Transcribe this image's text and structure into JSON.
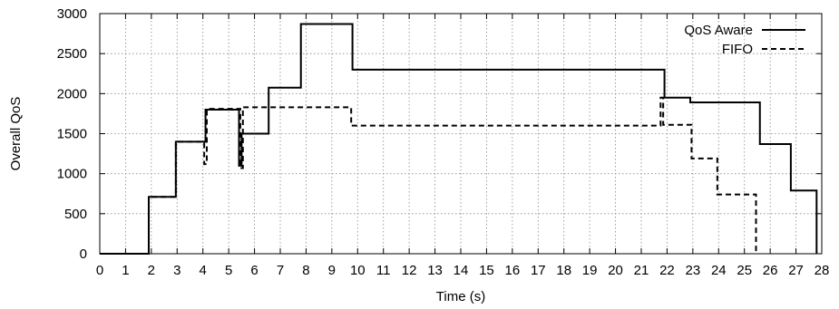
{
  "chart_data": {
    "type": "line",
    "xlabel": "Time (s)",
    "ylabel": "Overall QoS",
    "xlim": [
      0,
      28
    ],
    "ylim": [
      0,
      3000
    ],
    "xticks": [
      0,
      1,
      2,
      3,
      4,
      5,
      6,
      7,
      8,
      9,
      10,
      11,
      12,
      13,
      14,
      15,
      16,
      17,
      18,
      19,
      20,
      21,
      22,
      23,
      24,
      25,
      26,
      27,
      28
    ],
    "yticks": [
      0,
      500,
      1000,
      1500,
      2000,
      2500,
      3000
    ],
    "grid": true,
    "legend_position": "top-right",
    "series": [
      {
        "name": "QoS Aware",
        "style": "solid",
        "x": [
          0,
          1.9,
          1.9,
          2.95,
          2.95,
          4.1,
          4.1,
          5.4,
          5.4,
          5.5,
          5.5,
          6.55,
          6.55,
          7.8,
          7.8,
          9.8,
          9.8,
          21.9,
          21.9,
          22.9,
          22.9,
          25.6,
          25.6,
          26.8,
          26.8,
          27.8,
          27.8
        ],
        "y": [
          0,
          0,
          710,
          710,
          1400,
          1400,
          1800,
          1800,
          1100,
          1100,
          1500,
          1500,
          2075,
          2075,
          2870,
          2870,
          2300,
          2300,
          1950,
          1950,
          1890,
          1890,
          1370,
          1370,
          790,
          790,
          0
        ]
      },
      {
        "name": "FIFO",
        "style": "dashed",
        "x": [
          0,
          1.9,
          1.9,
          2.95,
          2.95,
          4.05,
          4.05,
          4.15,
          4.15,
          5.45,
          5.45,
          5.55,
          5.55,
          9.75,
          9.75,
          21.75,
          21.75,
          21.85,
          21.85,
          22.95,
          22.95,
          23.95,
          23.95,
          25.45,
          25.45
        ],
        "y": [
          0,
          0,
          710,
          710,
          1400,
          1400,
          1120,
          1120,
          1810,
          1810,
          1070,
          1070,
          1830,
          1830,
          1600,
          1600,
          1950,
          1950,
          1610,
          1610,
          1190,
          1190,
          740,
          740,
          0
        ]
      }
    ]
  }
}
